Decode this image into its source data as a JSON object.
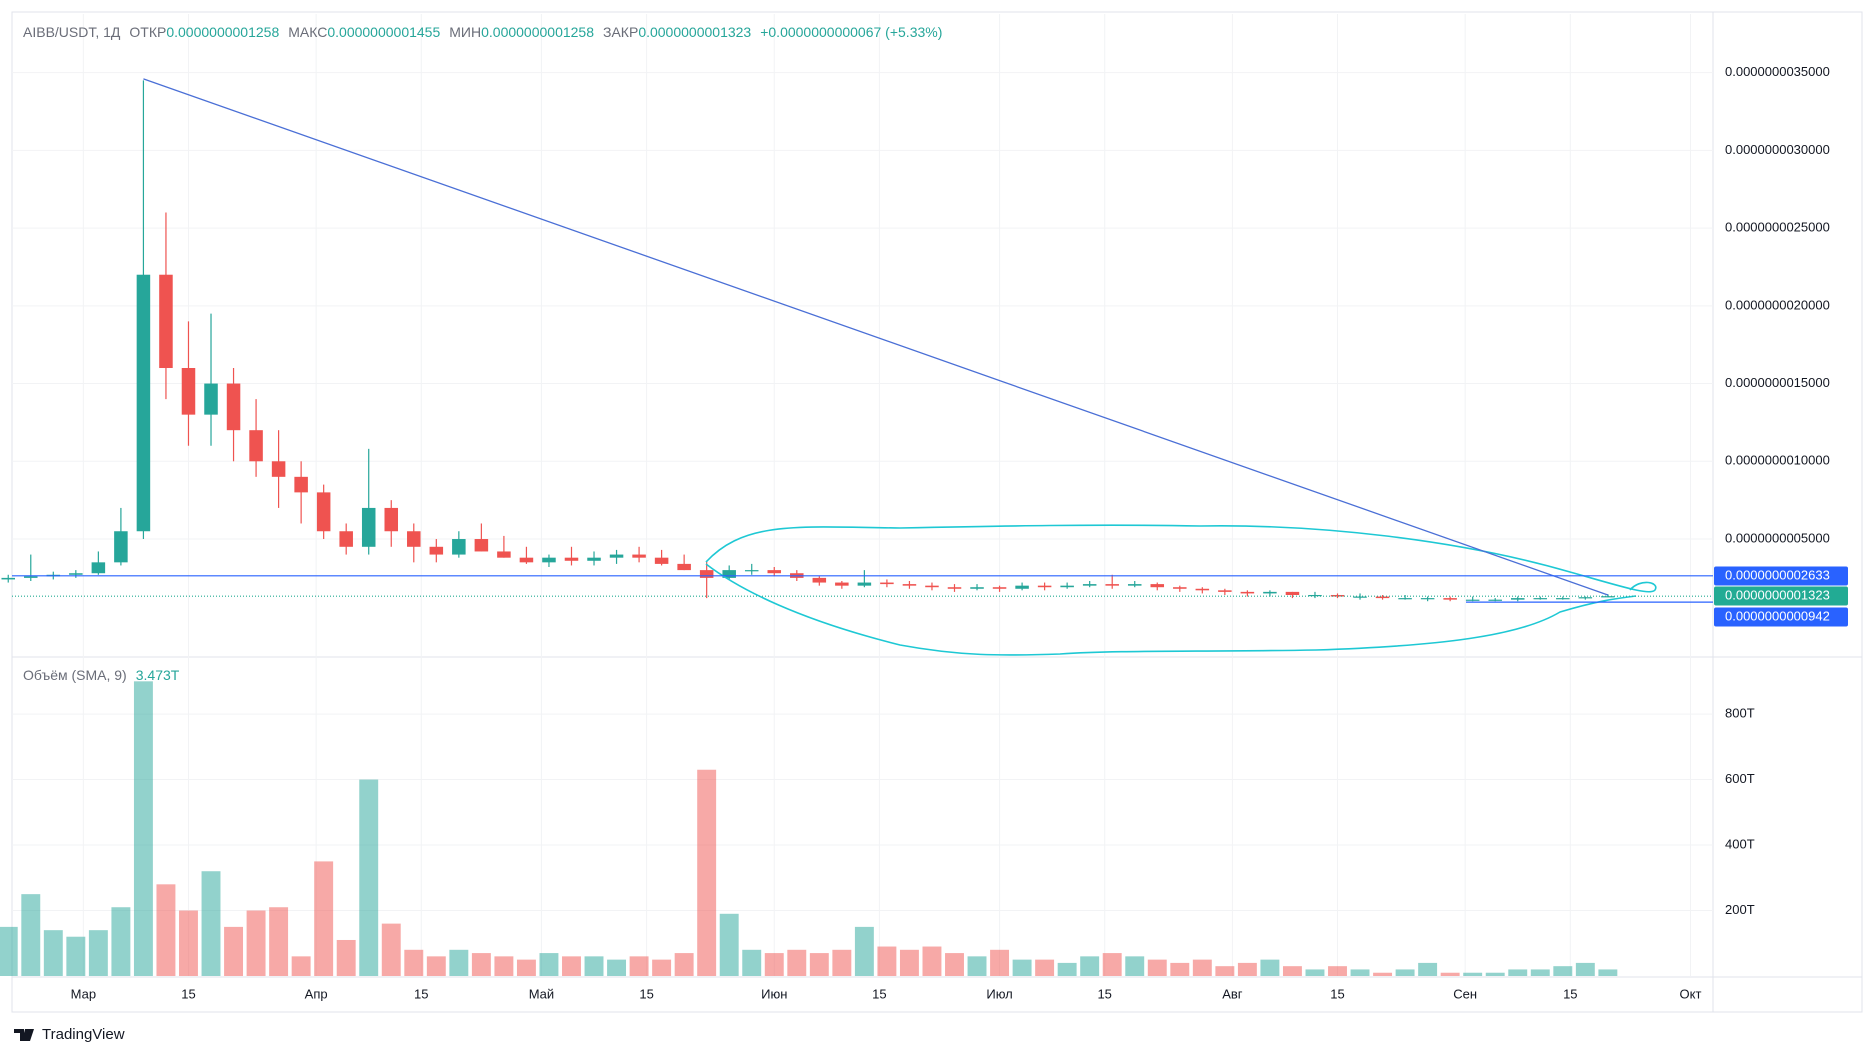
{
  "chart_data": {
    "type": "candlestick",
    "symbol": "AIBB/USDT, 1Д",
    "header": [
      {
        "label": "ОТКР",
        "value": "0.0000000001258"
      },
      {
        "label": "МАКС",
        "value": "0.0000000001455"
      },
      {
        "label": "МИН",
        "value": "0.0000000001258"
      },
      {
        "label": "ЗАКР",
        "value": "0.0000000001323"
      }
    ],
    "change": "+0.0000000000067 (+5.33%)",
    "up_color": "#26a69a",
    "down_color": "#ef5350",
    "x": [
      -10,
      -7,
      -4,
      -1,
      2,
      5,
      8,
      11,
      14,
      17,
      20,
      23,
      26,
      29,
      32,
      35,
      38,
      41,
      44,
      47,
      50,
      53,
      56,
      59,
      62,
      65,
      68,
      71,
      74,
      77,
      80,
      83,
      86,
      89,
      92,
      95,
      98,
      101,
      104,
      107,
      110,
      113,
      116,
      119,
      122,
      125,
      128,
      131,
      134,
      137,
      140,
      143,
      146,
      149,
      152,
      155,
      158,
      161,
      164,
      167,
      170,
      173,
      176,
      179,
      182,
      185,
      188,
      191,
      194,
      197,
      200,
      203
    ],
    "ohlc": [
      [
        2.4e-10,
        2.7e-10,
        2.2e-10,
        2.5e-10
      ],
      [
        2.5e-10,
        4e-10,
        2.3e-10,
        2.6e-10
      ],
      [
        2.6e-10,
        2.9e-10,
        2.4e-10,
        2.7e-10
      ],
      [
        2.7e-10,
        3e-10,
        2.5e-10,
        2.8e-10
      ],
      [
        2.8e-10,
        4.2e-10,
        2.7e-10,
        3.5e-10
      ],
      [
        3.5e-10,
        7e-10,
        3.3e-10,
        5.5e-10
      ],
      [
        5.5e-10,
        3.45e-09,
        5e-10,
        2.2e-09
      ],
      [
        2.2e-09,
        2.6e-09,
        1.4e-09,
        1.6e-09
      ],
      [
        1.6e-09,
        1.9e-09,
        1.1e-09,
        1.3e-09
      ],
      [
        1.3e-09,
        1.95e-09,
        1.1e-09,
        1.5e-09
      ],
      [
        1.5e-09,
        1.6e-09,
        1e-09,
        1.2e-09
      ],
      [
        1.2e-09,
        1.4e-09,
        9e-10,
        1e-09
      ],
      [
        1e-09,
        1.2e-09,
        7e-10,
        9e-10
      ],
      [
        9e-10,
        1e-09,
        6e-10,
        8e-10
      ],
      [
        8e-10,
        8.5e-10,
        5e-10,
        5.5e-10
      ],
      [
        5.5e-10,
        6e-10,
        4e-10,
        4.5e-10
      ],
      [
        4.5e-10,
        1.08e-09,
        4e-10,
        7e-10
      ],
      [
        7e-10,
        7.5e-10,
        4.5e-10,
        5.5e-10
      ],
      [
        5.5e-10,
        6e-10,
        3.5e-10,
        4.5e-10
      ],
      [
        4.5e-10,
        5e-10,
        3.5e-10,
        4e-10
      ],
      [
        4e-10,
        5.5e-10,
        3.8e-10,
        5e-10
      ],
      [
        5e-10,
        6e-10,
        4.2e-10,
        4.2e-10
      ],
      [
        4.2e-10,
        5.2e-10,
        3.8e-10,
        3.8e-10
      ],
      [
        3.8e-10,
        4.5e-10,
        3.4e-10,
        3.5e-10
      ],
      [
        3.5e-10,
        4e-10,
        3.2e-10,
        3.8e-10
      ],
      [
        3.8e-10,
        4.5e-10,
        3.3e-10,
        3.6e-10
      ],
      [
        3.6e-10,
        4.2e-10,
        3.3e-10,
        3.8e-10
      ],
      [
        3.8e-10,
        4.3e-10,
        3.4e-10,
        4e-10
      ],
      [
        4e-10,
        4.5e-10,
        3.5e-10,
        3.8e-10
      ],
      [
        3.8e-10,
        4.3e-10,
        3.3e-10,
        3.4e-10
      ],
      [
        3.4e-10,
        4e-10,
        3e-10,
        3e-10
      ],
      [
        3e-10,
        3.6e-10,
        1.2e-10,
        2.5e-10
      ],
      [
        2.5e-10,
        3.3e-10,
        2.4e-10,
        3e-10
      ],
      [
        3e-10,
        3.4e-10,
        2.7e-10,
        3e-10
      ],
      [
        3e-10,
        3.2e-10,
        2.6e-10,
        2.8e-10
      ],
      [
        2.8e-10,
        3e-10,
        2.3e-10,
        2.5e-10
      ],
      [
        2.5e-10,
        2.6e-10,
        2e-10,
        2.2e-10
      ],
      [
        2.2e-10,
        2.3e-10,
        1.8e-10,
        2e-10
      ],
      [
        2e-10,
        3e-10,
        1.9e-10,
        2.2e-10
      ],
      [
        2.2e-10,
        2.4e-10,
        1.9e-10,
        2.1e-10
      ],
      [
        2.1e-10,
        2.3e-10,
        1.8e-10,
        2e-10
      ],
      [
        2e-10,
        2.2e-10,
        1.7e-10,
        1.9e-10
      ],
      [
        1.9e-10,
        2.1e-10,
        1.6e-10,
        1.8e-10
      ],
      [
        1.8e-10,
        2.1e-10,
        1.7e-10,
        1.9e-10
      ],
      [
        1.9e-10,
        2e-10,
        1.6e-10,
        1.8e-10
      ],
      [
        1.8e-10,
        2.2e-10,
        1.7e-10,
        2e-10
      ],
      [
        2e-10,
        2.2e-10,
        1.7e-10,
        1.9e-10
      ],
      [
        1.9e-10,
        2.2e-10,
        1.8e-10,
        2e-10
      ],
      [
        2e-10,
        2.3e-10,
        1.9e-10,
        2.1e-10
      ],
      [
        2.1e-10,
        2.7e-10,
        1.8e-10,
        2e-10
      ],
      [
        2e-10,
        2.3e-10,
        1.9e-10,
        2.1e-10
      ],
      [
        2.1e-10,
        2.2e-10,
        1.7e-10,
        1.9e-10
      ],
      [
        1.9e-10,
        2e-10,
        1.6e-10,
        1.8e-10
      ],
      [
        1.8e-10,
        1.9e-10,
        1.5e-10,
        1.7e-10
      ],
      [
        1.7e-10,
        1.8e-10,
        1.4e-10,
        1.6e-10
      ],
      [
        1.6e-10,
        1.7e-10,
        1.3e-10,
        1.5e-10
      ],
      [
        1.5e-10,
        1.7e-10,
        1.3e-10,
        1.6e-10
      ],
      [
        1.6e-10,
        1.6e-10,
        1.2e-10,
        1.4e-10
      ],
      [
        1.4e-10,
        1.6e-10,
        1.2e-10,
        1.4e-10
      ],
      [
        1.4e-10,
        1.5e-10,
        1.2e-10,
        1.3e-10
      ],
      [
        1.3e-10,
        1.5e-10,
        1.1e-10,
        1.3e-10
      ],
      [
        1.3e-10,
        1.4e-10,
        1.1e-10,
        1.2e-10
      ],
      [
        1.2e-10,
        1.4e-10,
        1.1e-10,
        1.2e-10
      ],
      [
        1.2e-10,
        1.3e-10,
        1e-10,
        1.2e-10
      ],
      [
        1.2e-10,
        1.3e-10,
        1e-10,
        1.1e-10
      ],
      [
        1.1e-10,
        1.3e-10,
        1e-10,
        1.1e-10
      ],
      [
        1.1e-10,
        1.2e-10,
        1e-10,
        1.1e-10
      ],
      [
        1.1e-10,
        1.3e-10,
        1e-10,
        1.2e-10
      ],
      [
        1.2e-10,
        1.3e-10,
        1.1e-10,
        1.2e-10
      ],
      [
        1.2e-10,
        1.3e-10,
        1.1e-10,
        1.2e-10
      ],
      [
        1.2e-10,
        1.3e-10,
        1.1e-10,
        1.258e-10
      ],
      [
        1.258e-10,
        1.455e-10,
        1.258e-10,
        1.323e-10
      ]
    ],
    "xlim": [
      -9.5,
      217
    ],
    "xticks": [
      {
        "value": 0,
        "label": "Мар"
      },
      {
        "value": 14,
        "label": "15"
      },
      {
        "value": 31,
        "label": "Апр"
      },
      {
        "value": 45,
        "label": "15"
      },
      {
        "value": 61,
        "label": "Май"
      },
      {
        "value": 75,
        "label": "15"
      },
      {
        "value": 92,
        "label": "Июн"
      },
      {
        "value": 106,
        "label": "15"
      },
      {
        "value": 122,
        "label": "Июл"
      },
      {
        "value": 136,
        "label": "15"
      },
      {
        "value": 153,
        "label": "Авг"
      },
      {
        "value": 167,
        "label": "15"
      },
      {
        "value": 184,
        "label": "Сен"
      },
      {
        "value": 198,
        "label": "15"
      },
      {
        "value": 214,
        "label": "Окт"
      }
    ],
    "ylim": [
      -2.46e-10,
      3.877e-09
    ],
    "yticks": [
      {
        "value": 5e-10,
        "label": "0.0000000005000"
      },
      {
        "value": 1e-09,
        "label": "0.0000000010000"
      },
      {
        "value": 1.5e-09,
        "label": "0.0000000015000"
      },
      {
        "value": 2e-09,
        "label": "0.0000000020000"
      },
      {
        "value": 2.5e-09,
        "label": "0.0000000025000"
      },
      {
        "value": 3e-09,
        "label": "0.0000000030000"
      },
      {
        "value": 3.5e-09,
        "label": "0.0000000035000"
      }
    ],
    "price_lines": [
      {
        "value": 2.633e-10,
        "label": "0.0000000002633",
        "color": "#2962ff"
      },
      {
        "value": 1.323e-10,
        "label": "0.0000000001323",
        "color": "#22ab94"
      },
      {
        "value": 9.42e-11,
        "label": "0.0000000000942",
        "color": "#2962ff"
      }
    ],
    "trend_line": {
      "x": [
        8,
        203
      ],
      "y": [
        3.46e-09,
        1.4e-10
      ],
      "color": "#4a6fd6"
    },
    "volume": {
      "title": "Объём (SMA, 9)",
      "value_label": "3.473T",
      "values": [
        150,
        250,
        140,
        120,
        140,
        210,
        900,
        280,
        200,
        320,
        150,
        200,
        210,
        60,
        350,
        110,
        600,
        160,
        80,
        60,
        80,
        70,
        60,
        50,
        70,
        60,
        60,
        50,
        60,
        50,
        70,
        630,
        190,
        80,
        70,
        80,
        70,
        80,
        150,
        90,
        80,
        90,
        70,
        60,
        80,
        50,
        50,
        40,
        60,
        70,
        60,
        50,
        40,
        50,
        30,
        40,
        50,
        30,
        20,
        30,
        20,
        10,
        20,
        40,
        10,
        10,
        10,
        20,
        20,
        30,
        40,
        20
      ],
      "ylim": [
        0,
        956
      ],
      "yticks": [
        {
          "value": 200,
          "label": "200T"
        },
        {
          "value": 400,
          "label": "400T"
        },
        {
          "value": 600,
          "label": "600T"
        },
        {
          "value": 800,
          "label": "800T"
        }
      ]
    },
    "brand": "TradingView"
  }
}
